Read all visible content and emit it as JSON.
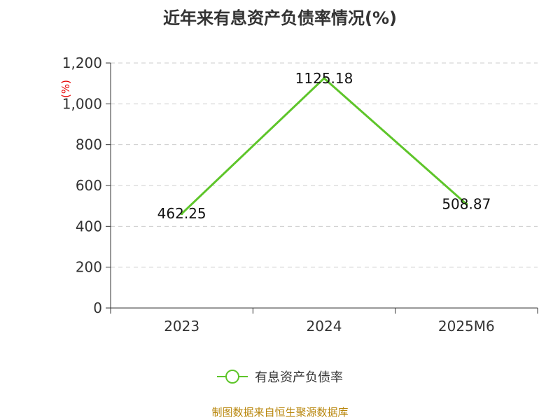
{
  "chart_data": {
    "type": "line",
    "title": "近年来有息资产负债率情况(%)",
    "ylabel": "(%)",
    "xlabel": "",
    "categories": [
      "2023",
      "2024",
      "2025M6"
    ],
    "series": [
      {
        "name": "有息资产负债率",
        "values": [
          462.25,
          1125.18,
          508.87
        ],
        "data_labels": [
          "462.25",
          "1125.18",
          "508.87"
        ],
        "color": "#5ec52a"
      }
    ],
    "ylim": [
      0,
      1200
    ],
    "yticks": [
      0,
      200,
      400,
      600,
      800,
      1000,
      1200
    ],
    "ytick_labels": [
      "0",
      "200",
      "400",
      "600",
      "800",
      "1,000",
      "1,200"
    ],
    "grid": true,
    "legend_position": "bottom",
    "axis_color": "#333333",
    "grid_color": "#cccccc",
    "ylabel_color": "#e60000"
  },
  "footer": {
    "source": "制图数据来自恒生聚源数据库",
    "source_color": "#b8860b"
  }
}
